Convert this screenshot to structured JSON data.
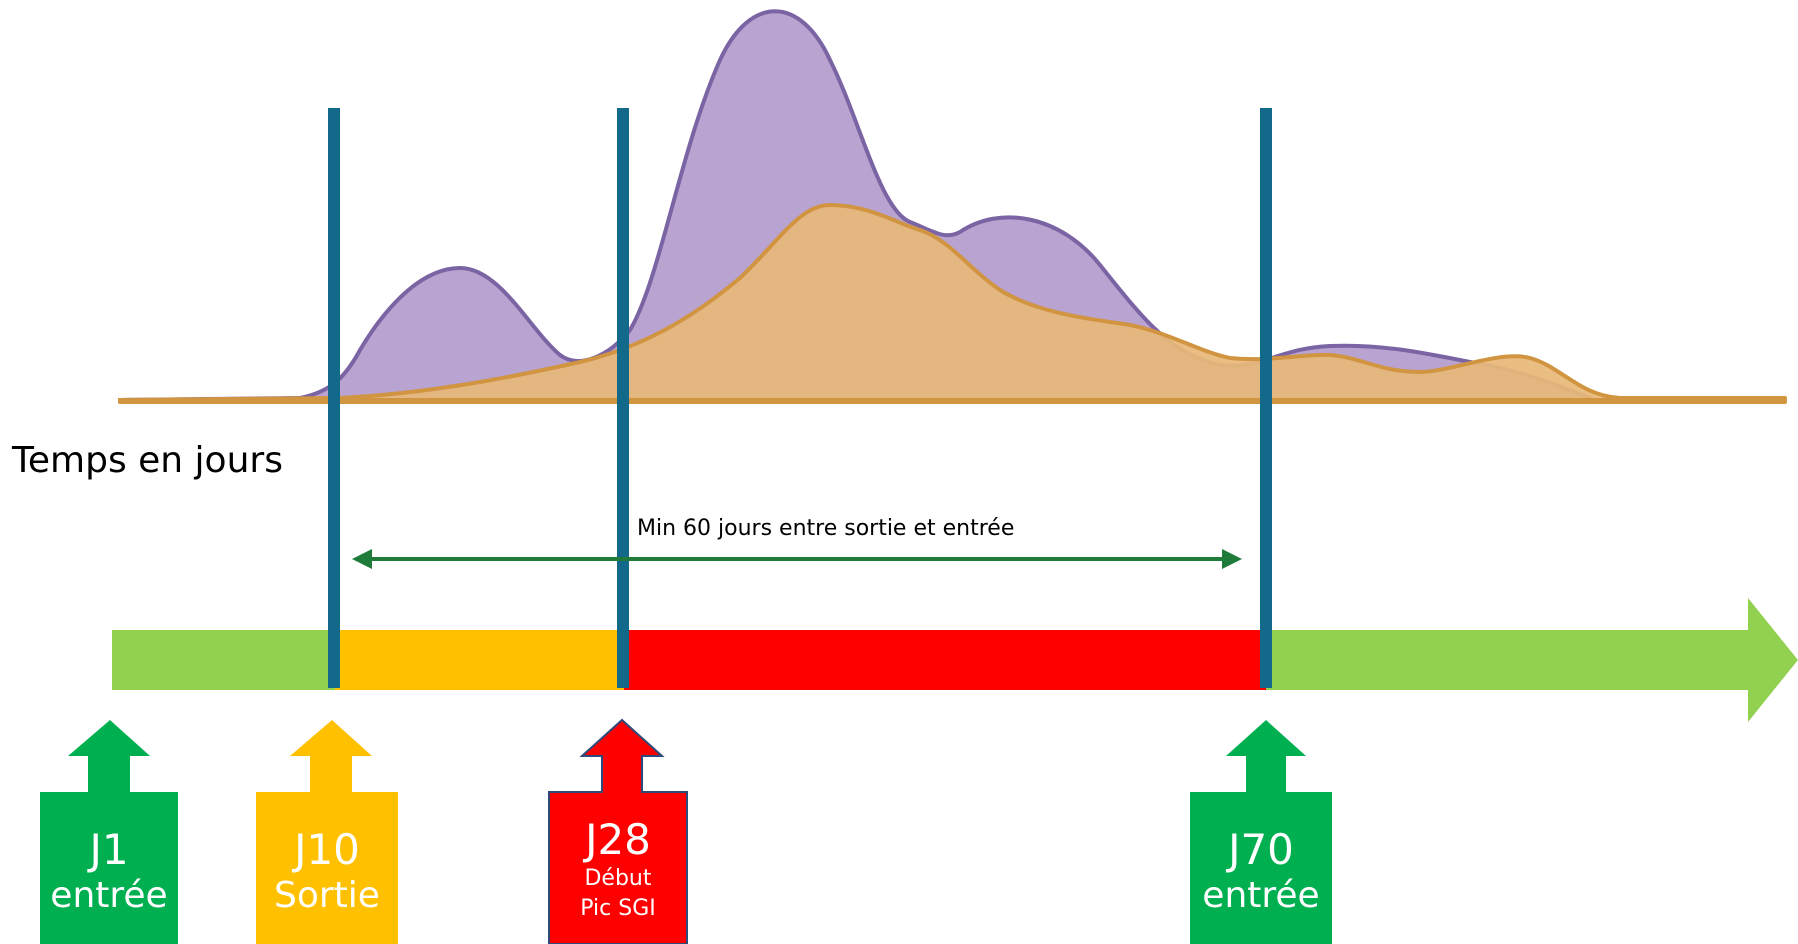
{
  "axis_label": "Temps en jours",
  "span_label": "Min 60 jours entre sortie et entrée",
  "colors": {
    "purple_fill": "#b9a3d0",
    "purple_line": "#7a64a3",
    "orange_fill": "#e8b878",
    "orange_line": "#d19441",
    "divider": "#12698a",
    "timeline_green": "#92d050",
    "timeline_yellow": "#ffc000",
    "timeline_red": "#ff0000",
    "marker_green": "#00b050",
    "marker_yellow": "#ffc000",
    "marker_red": "#ff0000",
    "span_arrow": "#1e7b3a"
  },
  "markers": [
    {
      "day": "J1",
      "label": "entrée",
      "color": "#00b050"
    },
    {
      "day": "J10",
      "label": "Sortie",
      "color": "#ffc000"
    },
    {
      "day": "J28",
      "label": "Début",
      "label2": "Pic SGI",
      "color": "#ff0000"
    },
    {
      "day": "J70",
      "label": "entrée",
      "color": "#00b050"
    }
  ]
}
